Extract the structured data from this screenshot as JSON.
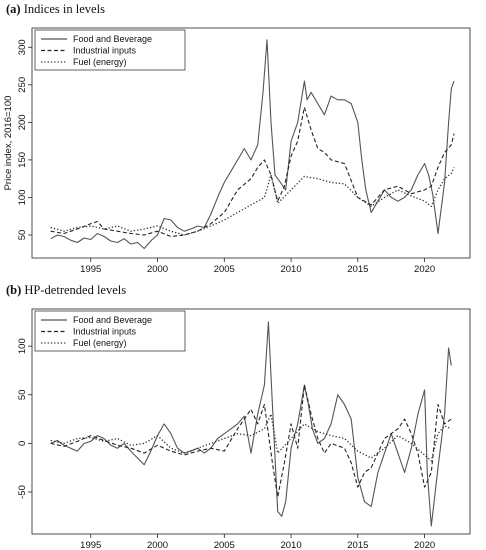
{
  "panels": [
    {
      "letter": "(a)",
      "title": "Indices in levels",
      "chart_data": {
        "type": "line",
        "title": "Indices in levels",
        "ylabel": "Price index, 2016=100",
        "xlabel": "",
        "xlim": [
          1991.5,
          2022.8
        ],
        "ylim": [
          30,
          315
        ],
        "xticks": [
          1995,
          2000,
          2005,
          2010,
          2015,
          2020
        ],
        "yticks": [
          50,
          100,
          150,
          200,
          250,
          300
        ],
        "grid": false,
        "legend": "top-left",
        "series": [
          {
            "name": "Food and Beverage",
            "style": "solid",
            "color": "#555555",
            "x": [
              1992,
              1992.5,
              1993,
              1993.5,
              1994,
              1994.5,
              1995,
              1995.5,
              1996,
              1996.5,
              1997,
              1997.5,
              1998,
              1998.5,
              1999,
              1999.3,
              1999.6,
              2000,
              2000.5,
              2001,
              2001.5,
              2002,
              2002.5,
              2003,
              2003.5,
              2004,
              2004.5,
              2005,
              2005.5,
              2006,
              2006.5,
              2007,
              2007.5,
              2007.9,
              2008.2,
              2008.5,
              2008.8,
              2009.2,
              2009.6,
              2010,
              2010.5,
              2011,
              2011.2,
              2011.5,
              2012,
              2012.5,
              2013,
              2013.5,
              2014,
              2014.5,
              2015,
              2015.3,
              2015.6,
              2016,
              2016.5,
              2017,
              2017.5,
              2018,
              2018.5,
              2019,
              2019.5,
              2020,
              2020.3,
              2020.6,
              2021,
              2021.5,
              2021.8,
              2022,
              2022.2
            ],
            "values": [
              45,
              50,
              48,
              43,
              40,
              46,
              44,
              52,
              48,
              42,
              40,
              45,
              38,
              40,
              32,
              38,
              44,
              50,
              72,
              70,
              60,
              55,
              58,
              62,
              60,
              78,
              100,
              120,
              135,
              150,
              165,
              150,
              170,
              240,
              310,
              200,
              130,
              120,
              110,
              175,
              200,
              255,
              230,
              240,
              225,
              210,
              235,
              230,
              230,
              225,
              200,
              150,
              110,
              80,
              95,
              110,
              100,
              95,
              100,
              110,
              130,
              145,
              130,
              105,
              52,
              120,
              200,
              245,
              255
            ]
          },
          {
            "name": "Industrial inputs",
            "style": "dashed",
            "color": "#222222",
            "x": [
              1992,
              1993,
              1994,
              1995,
              1995.5,
              1996,
              1997,
              1998,
              1999,
              2000,
              2001,
              2002,
              2003,
              2004,
              2005,
              2006,
              2007,
              2007.5,
              2008,
              2008.5,
              2009,
              2009.5,
              2010,
              2010.5,
              2011,
              2011.5,
              2012,
              2012.5,
              2013,
              2014,
              2015,
              2016,
              2016.5,
              2017,
              2018,
              2019,
              2020,
              2020.5,
              2021,
              2021.5,
              2022,
              2022.2
            ],
            "values": [
              55,
              52,
              58,
              65,
              68,
              58,
              55,
              52,
              50,
              55,
              48,
              50,
              55,
              65,
              80,
              110,
              125,
              140,
              150,
              130,
              95,
              115,
              155,
              175,
              220,
              190,
              165,
              160,
              150,
              145,
              100,
              90,
              100,
              110,
              115,
              105,
              110,
              115,
              140,
              160,
              170,
              185
            ]
          },
          {
            "name": "Fuel (energy)",
            "style": "dotted",
            "color": "#333333",
            "x": [
              1992,
              1993,
              1994,
              1995,
              1996,
              1997,
              1998,
              1999,
              2000,
              2001,
              2002,
              2003,
              2004,
              2005,
              2006,
              2007,
              2007.5,
              2008,
              2008.5,
              2009,
              2010,
              2011,
              2012,
              2013,
              2014,
              2015,
              2016,
              2017,
              2018,
              2019,
              2020,
              2020.5,
              2021,
              2021.5,
              2022,
              2022.2
            ],
            "values": [
              60,
              55,
              60,
              62,
              58,
              62,
              55,
              58,
              62,
              55,
              50,
              55,
              62,
              70,
              80,
              90,
              95,
              100,
              130,
              92,
              110,
              128,
              125,
              120,
              118,
              100,
              88,
              100,
              110,
              102,
              95,
              88,
              110,
              125,
              132,
              140
            ]
          }
        ]
      }
    },
    {
      "letter": "(b)",
      "title": "HP-detrended levels",
      "chart_data": {
        "type": "line",
        "title": "HP-detrended levels",
        "ylabel": "",
        "xlabel": "",
        "xlim": [
          1991.5,
          2022.8
        ],
        "ylim": [
          -85,
          130
        ],
        "xticks": [
          1995,
          2000,
          2005,
          2010,
          2015,
          2020
        ],
        "yticks": [
          -50,
          0,
          50,
          100
        ],
        "grid": false,
        "legend": "top-left",
        "series": [
          {
            "name": "Food and Beverage",
            "style": "solid",
            "color": "#555555",
            "x": [
              1992,
              1992.5,
              1993,
              1993.5,
              1994,
              1994.5,
              1995,
              1995.5,
              1996,
              1996.5,
              1997,
              1997.5,
              1998,
              1998.5,
              1999,
              1999.5,
              2000,
              2000.5,
              2001,
              2001.5,
              2002,
              2002.5,
              2003,
              2003.5,
              2004,
              2004.5,
              2005,
              2005.5,
              2006,
              2006.5,
              2007,
              2007.5,
              2008,
              2008.3,
              2008.6,
              2009,
              2009.3,
              2009.6,
              2010,
              2010.5,
              2011,
              2011.3,
              2011.6,
              2012,
              2012.5,
              2013,
              2013.5,
              2014,
              2014.5,
              2015,
              2015.5,
              2016,
              2016.5,
              2017,
              2017.5,
              2018,
              2018.5,
              2019,
              2019.5,
              2020,
              2020.2,
              2020.5,
              2021,
              2021.5,
              2021.8,
              2022
            ],
            "values": [
              0,
              3,
              -2,
              -5,
              -8,
              0,
              2,
              8,
              5,
              -2,
              -5,
              0,
              -8,
              -15,
              -22,
              -8,
              8,
              20,
              10,
              -5,
              -10,
              -8,
              -5,
              -10,
              -5,
              5,
              10,
              15,
              20,
              28,
              -10,
              30,
              60,
              125,
              40,
              -70,
              -75,
              -60,
              -5,
              20,
              60,
              40,
              15,
              0,
              5,
              20,
              50,
              40,
              25,
              -35,
              -60,
              -65,
              -30,
              -10,
              10,
              -10,
              -30,
              -5,
              30,
              55,
              -30,
              -85,
              -25,
              30,
              98,
              80
            ]
          },
          {
            "name": "Industrial inputs",
            "style": "dashed",
            "color": "#222222",
            "x": [
              1992,
              1993,
              1994,
              1995,
              1996,
              1997,
              1998,
              1999,
              2000,
              2001,
              2002,
              2003,
              2004,
              2005,
              2006,
              2007,
              2007.5,
              2008,
              2008.3,
              2008.6,
              2009,
              2009.5,
              2010,
              2010.5,
              2011,
              2011.5,
              2012,
              2012.5,
              2013,
              2014,
              2014.5,
              2015,
              2015.5,
              2016,
              2016.5,
              2017,
              2018,
              2018.5,
              2019,
              2019.5,
              2020,
              2020.5,
              2021,
              2021.5,
              2022
            ],
            "values": [
              0,
              -3,
              2,
              8,
              3,
              -2,
              -5,
              -10,
              -2,
              -8,
              -12,
              -8,
              -5,
              -8,
              15,
              35,
              20,
              40,
              10,
              -20,
              -55,
              -20,
              20,
              -5,
              60,
              30,
              5,
              -10,
              0,
              -5,
              -20,
              -45,
              -30,
              -25,
              -10,
              5,
              15,
              25,
              10,
              -10,
              -45,
              -30,
              40,
              20,
              25
            ]
          },
          {
            "name": "Fuel (energy)",
            "style": "dotted",
            "color": "#333333",
            "x": [
              1992,
              1993,
              1994,
              1995,
              1996,
              1997,
              1998,
              1999,
              2000,
              2001,
              2002,
              2003,
              2004,
              2005,
              2006,
              2007,
              2008,
              2008.5,
              2009,
              2010,
              2011,
              2012,
              2013,
              2014,
              2015,
              2016,
              2017,
              2018,
              2019,
              2020,
              2020.5,
              2021,
              2021.5,
              2022
            ],
            "values": [
              3,
              0,
              5,
              6,
              2,
              5,
              -2,
              0,
              8,
              -5,
              -10,
              -5,
              0,
              5,
              10,
              8,
              15,
              30,
              -10,
              5,
              20,
              12,
              8,
              5,
              -8,
              -15,
              -5,
              8,
              0,
              -12,
              -18,
              10,
              18,
              15
            ]
          }
        ]
      }
    }
  ]
}
